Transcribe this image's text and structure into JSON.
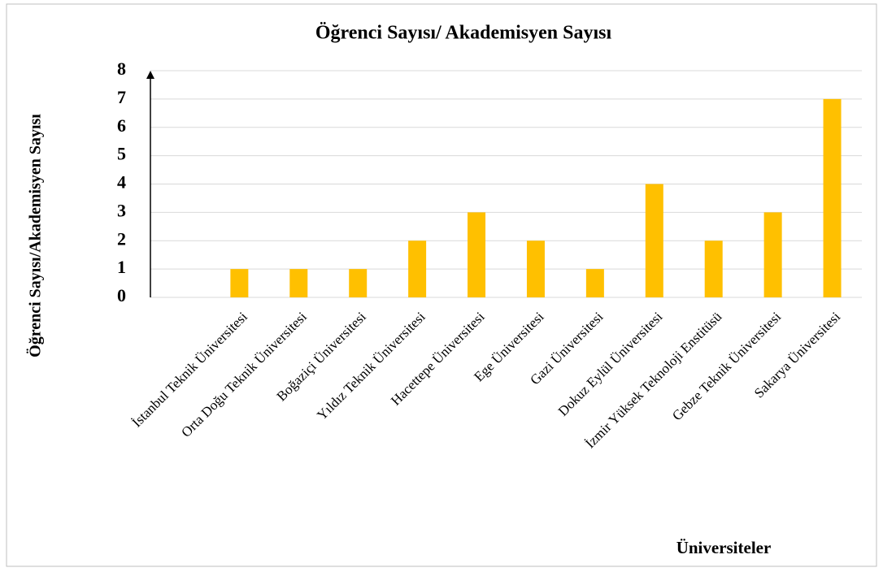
{
  "chart_data": {
    "type": "bar",
    "title": "Öğrenci Sayısı/ Akademisyen Sayısı",
    "x_label": "Üniversiteler",
    "y_label": "Öğrenci Sayısı/Akademisyen Sayısı",
    "categories": [
      null,
      "İstanbul Teknik Üniversitesi",
      "Orta Doğu Teknik Üniversitesi",
      "Boğaziçi Üniversitesi",
      "Yıldız Teknik Üniversitesi",
      "Hacettepe Üniversitesi",
      "Ege Üniversitesi",
      "Gazi Üniversitesi",
      "Dokuz Eylül Üniversitesi",
      "İzmir Yüksek Teknoloji Enstitüsü",
      "Gebze Teknik Üniversitesi",
      "Sakarya Üniversitesi"
    ],
    "values": [
      null,
      1,
      1,
      1,
      2,
      3,
      2,
      1,
      4,
      2,
      3,
      7
    ],
    "color": "#ffc000",
    "ylim": [
      0,
      8
    ],
    "yticks": [
      0,
      1,
      2,
      3,
      4,
      5,
      6,
      7,
      8
    ],
    "grid": true
  }
}
